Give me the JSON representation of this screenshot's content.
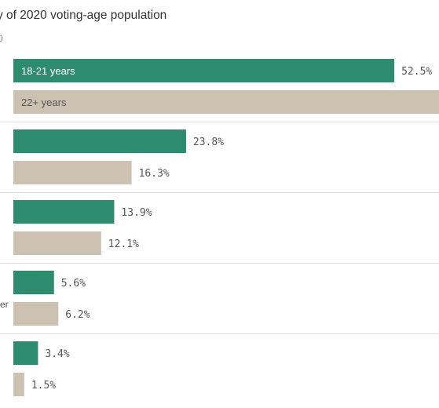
{
  "title": "y of 2020 voting-age population",
  "subtitle_fragment": "0",
  "colors": {
    "young": "#2e8c6e",
    "old": "#cdc1b2",
    "separator": "#dddddd",
    "in_bar_young_text": "#ffffff",
    "in_bar_old_text": "#555555"
  },
  "chart_data": {
    "type": "bar",
    "orientation": "horizontal",
    "title": "y of 2020 voting-age population",
    "xlim": [
      0,
      100
    ],
    "series": [
      {
        "name": "18-21 years",
        "values": [
          52.5,
          23.8,
          13.9,
          5.6,
          3.4
        ]
      },
      {
        "name": "22+ years",
        "values": [
          null,
          16.3,
          12.1,
          6.2,
          1.5
        ]
      }
    ],
    "categories": [
      "",
      "",
      "",
      "er",
      ""
    ],
    "value_labels": [
      [
        "52.5%",
        "23.8%",
        "13.9%",
        "5.6%",
        "3.4%"
      ],
      [
        "",
        "16.3%",
        "12.1%",
        "6.2%",
        "1.5%"
      ]
    ],
    "in_bar_labels": [
      "18-21 years",
      "22+ years"
    ]
  }
}
